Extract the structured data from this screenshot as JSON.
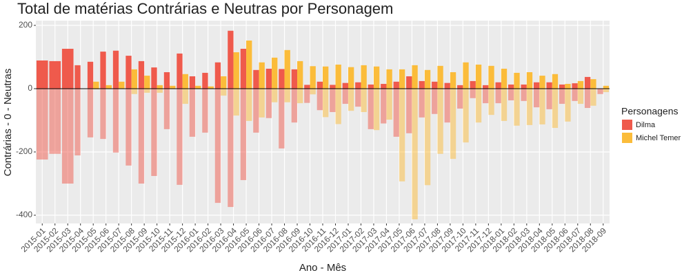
{
  "chart_data": {
    "type": "bar",
    "title": "Total de matérias Contrárias e Neutras por Personagem",
    "x_label": "Ano - Mês",
    "y_label": "Contrárias - 0 - Neutras",
    "legend_title": "Personagens",
    "legend_position": "right",
    "grid": true,
    "hline": 0,
    "ylim": [
      -426,
      215
    ],
    "yticks": [
      -400,
      -200,
      0,
      200
    ],
    "categories": [
      "2015-01",
      "2015-02",
      "2015-03",
      "2015-04",
      "2015-05",
      "2015-06",
      "2015-07",
      "2015-08",
      "2015-09",
      "2015-10",
      "2015-11",
      "2015-12",
      "2016-01",
      "2016-02",
      "2016-03",
      "2016-04",
      "2016-05",
      "2016-06",
      "2016-07",
      "2016-08",
      "2016-09",
      "2016-10",
      "2016-11",
      "2016-12",
      "2017-01",
      "2017-02",
      "2017-03",
      "2017-04",
      "2017-05",
      "2017-06",
      "2017-07",
      "2017-08",
      "2017-09",
      "2017-10",
      "2017-11",
      "2017-12",
      "2018-01",
      "2018-02",
      "2018-03",
      "2018-04",
      "2018-05",
      "2018-06",
      "2018-07",
      "2018-08",
      "2018-09"
    ],
    "series": [
      {
        "name": "Dilma",
        "color": "#ef5a4c",
        "values": [
          89,
          87,
          126,
          74,
          85,
          117,
          120,
          104,
          87,
          67,
          52,
          111,
          39,
          50,
          83,
          183,
          126,
          59,
          63,
          62,
          61,
          12,
          22,
          12,
          18,
          20,
          13,
          15,
          22,
          39,
          24,
          22,
          18,
          11,
          24,
          11,
          20,
          13,
          13,
          20,
          20,
          13,
          17,
          37,
          0
        ],
        "neutras": [
          -224,
          -206,
          -300,
          -211,
          -154,
          -159,
          -202,
          -243,
          -300,
          -276,
          -128,
          -304,
          -152,
          -139,
          -361,
          -374,
          -289,
          -139,
          -93,
          -189,
          -107,
          -45,
          -68,
          -74,
          -48,
          -57,
          -128,
          -110,
          -152,
          -141,
          -91,
          -80,
          -107,
          -63,
          -30,
          -46,
          -46,
          -37,
          -39,
          -59,
          -65,
          -48,
          -39,
          -61,
          -17
        ]
      },
      {
        "name": "Michel Temer",
        "color": "#fbbc3a",
        "values": [
          null,
          null,
          null,
          0,
          22,
          11,
          22,
          61,
          41,
          11,
          9,
          46,
          9,
          7,
          39,
          115,
          152,
          83,
          98,
          122,
          87,
          71,
          70,
          76,
          68,
          74,
          70,
          61,
          61,
          74,
          59,
          72,
          52,
          83,
          76,
          72,
          63,
          50,
          52,
          41,
          46,
          15,
          24,
          30,
          9
        ],
        "neutras": [
          null,
          null,
          null,
          0,
          -2,
          0,
          0,
          -17,
          -13,
          -13,
          0,
          -48,
          0,
          0,
          -22,
          -85,
          -102,
          -91,
          -43,
          -43,
          -46,
          -18,
          -90,
          -112,
          -70,
          -74,
          -131,
          -98,
          -293,
          -413,
          -305,
          -206,
          -222,
          -170,
          -107,
          -83,
          -102,
          -117,
          -115,
          -113,
          -124,
          -104,
          -48,
          -54,
          -11
        ]
      }
    ]
  }
}
